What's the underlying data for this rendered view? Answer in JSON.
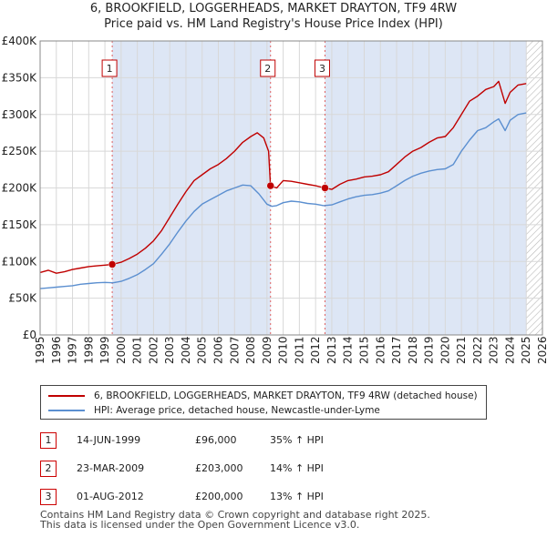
{
  "header": {
    "title": "6, BROOKFIELD, LOGGERHEADS, MARKET DRAYTON, TF9 4RW",
    "subtitle": "Price paid vs. HM Land Registry's House Price Index (HPI)"
  },
  "colors": {
    "property_line": "#c00000",
    "hpi_line": "#5b8fd0",
    "shade": "#dde6f5",
    "grid": "#d8d8d8"
  },
  "chart_data": {
    "type": "line",
    "xlim": [
      1995,
      2026
    ],
    "ylim": [
      0,
      400000
    ],
    "x_ticks": [
      "1995",
      "1996",
      "1997",
      "1998",
      "1999",
      "2000",
      "2001",
      "2002",
      "2003",
      "2004",
      "2005",
      "2006",
      "2007",
      "2008",
      "2009",
      "2010",
      "2011",
      "2012",
      "2013",
      "2014",
      "2015",
      "2016",
      "2017",
      "2018",
      "2019",
      "2020",
      "2021",
      "2022",
      "2023",
      "2024",
      "2025",
      "2026"
    ],
    "y_ticks": [
      {
        "value": 0,
        "label": "£0"
      },
      {
        "value": 50000,
        "label": "£50K"
      },
      {
        "value": 100000,
        "label": "£100K"
      },
      {
        "value": 150000,
        "label": "£150K"
      },
      {
        "value": 200000,
        "label": "£200K"
      },
      {
        "value": 250000,
        "label": "£250K"
      },
      {
        "value": 300000,
        "label": "£300K"
      },
      {
        "value": 350000,
        "label": "£350K"
      },
      {
        "value": 400000,
        "label": "£400K"
      }
    ],
    "shaded_ranges": [
      [
        1999.45,
        2009.22
      ],
      [
        2012.58,
        2025.0
      ]
    ],
    "hatched_range": [
      2025.0,
      2026.0
    ],
    "series": [
      {
        "name": "6, BROOKFIELD, LOGGERHEADS, MARKET DRAYTON, TF9 4RW (detached house)",
        "x": [
          1995.0,
          1995.5,
          1996.0,
          1996.5,
          1997.0,
          1997.5,
          1998.0,
          1998.5,
          1999.0,
          1999.45,
          2000.0,
          2000.5,
          2001.0,
          2001.5,
          2002.0,
          2002.5,
          2003.0,
          2003.5,
          2004.0,
          2004.5,
          2005.0,
          2005.5,
          2006.0,
          2006.5,
          2007.0,
          2007.5,
          2008.0,
          2008.4,
          2008.8,
          2009.1,
          2009.22,
          2009.6,
          2010.0,
          2010.5,
          2011.0,
          2011.5,
          2012.0,
          2012.58,
          2013.0,
          2013.5,
          2014.0,
          2014.5,
          2015.0,
          2015.5,
          2016.0,
          2016.5,
          2017.0,
          2017.5,
          2018.0,
          2018.5,
          2019.0,
          2019.5,
          2020.0,
          2020.5,
          2021.0,
          2021.5,
          2022.0,
          2022.5,
          2023.0,
          2023.3,
          2023.7,
          2024.0,
          2024.5,
          2025.0
        ],
        "y": [
          85000,
          88000,
          84000,
          86000,
          89000,
          91000,
          93000,
          94000,
          95000,
          96000,
          99000,
          104000,
          110000,
          118000,
          128000,
          142000,
          160000,
          178000,
          195000,
          210000,
          218000,
          226000,
          232000,
          240000,
          250000,
          262000,
          270000,
          275000,
          268000,
          250000,
          203000,
          200000,
          210000,
          209000,
          207000,
          205000,
          203000,
          200000,
          198000,
          205000,
          210000,
          212000,
          215000,
          216000,
          218000,
          222000,
          232000,
          242000,
          250000,
          255000,
          262000,
          268000,
          270000,
          282000,
          300000,
          318000,
          325000,
          334000,
          338000,
          345000,
          315000,
          330000,
          340000,
          342000
        ]
      },
      {
        "name": "HPI: Average price, detached house, Newcastle-under-Lyme",
        "x": [
          1995.0,
          1995.5,
          1996.0,
          1996.5,
          1997.0,
          1997.5,
          1998.0,
          1998.5,
          1999.0,
          1999.5,
          2000.0,
          2000.5,
          2001.0,
          2001.5,
          2002.0,
          2002.5,
          2003.0,
          2003.5,
          2004.0,
          2004.5,
          2005.0,
          2005.5,
          2006.0,
          2006.5,
          2007.0,
          2007.5,
          2008.0,
          2008.5,
          2009.0,
          2009.3,
          2009.6,
          2010.0,
          2010.5,
          2011.0,
          2011.5,
          2012.0,
          2012.5,
          2013.0,
          2013.5,
          2014.0,
          2014.5,
          2015.0,
          2015.5,
          2016.0,
          2016.5,
          2017.0,
          2017.5,
          2018.0,
          2018.5,
          2019.0,
          2019.5,
          2020.0,
          2020.5,
          2021.0,
          2021.5,
          2022.0,
          2022.5,
          2023.0,
          2023.3,
          2023.7,
          2024.0,
          2024.5,
          2025.0
        ],
        "y": [
          63000,
          64000,
          65000,
          66000,
          67000,
          69000,
          70000,
          71000,
          71500,
          71000,
          73000,
          77000,
          82000,
          89000,
          97000,
          110000,
          124000,
          140000,
          155000,
          168000,
          178000,
          184000,
          190000,
          196000,
          200000,
          204000,
          203000,
          192000,
          178000,
          175000,
          176000,
          180000,
          182000,
          181000,
          179000,
          178000,
          176000,
          177000,
          181000,
          185000,
          188000,
          190000,
          191000,
          193000,
          196000,
          203000,
          210000,
          216000,
          220000,
          223000,
          225000,
          226000,
          232000,
          250000,
          265000,
          278000,
          282000,
          290000,
          294000,
          278000,
          292000,
          300000,
          302000
        ]
      }
    ],
    "sales": [
      {
        "id": "1",
        "x": 1999.45,
        "price": 96000,
        "date": "14-JUN-1999",
        "price_label": "£96,000",
        "hpi": "35% ↑ HPI"
      },
      {
        "id": "2",
        "x": 2009.22,
        "price": 203000,
        "date": "23-MAR-2009",
        "price_label": "£203,000",
        "hpi": "14% ↑ HPI"
      },
      {
        "id": "3",
        "x": 2012.58,
        "price": 200000,
        "date": "01-AUG-2012",
        "price_label": "£200,000",
        "hpi": "13% ↑ HPI"
      }
    ]
  },
  "legend": {
    "property_label": "6, BROOKFIELD, LOGGERHEADS, MARKET DRAYTON, TF9 4RW (detached house)",
    "hpi_label": "HPI: Average price, detached house, Newcastle-under-Lyme"
  },
  "footer": {
    "line1": "Contains HM Land Registry data © Crown copyright and database right 2025.",
    "line2": "This data is licensed under the Open Government Licence v3.0."
  }
}
